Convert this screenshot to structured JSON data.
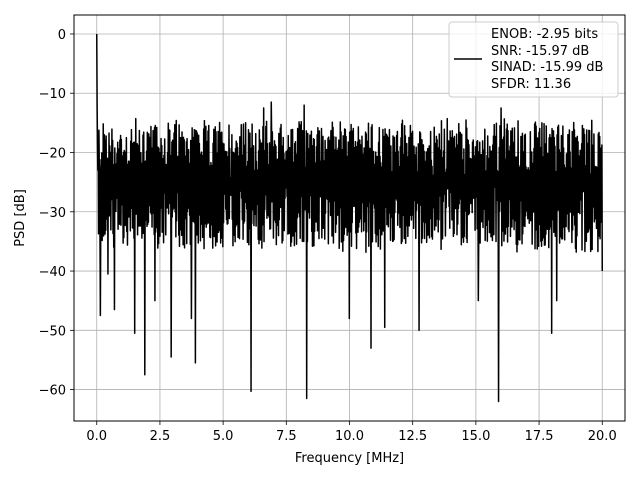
{
  "chart_data": {
    "type": "line",
    "title": "",
    "xlabel": "Frequency [MHz]",
    "ylabel": "PSD [dB]",
    "xlim": [
      -0.9,
      20.9
    ],
    "ylim": [
      -65.3,
      3.2
    ],
    "x_ticks": [
      0,
      2.5,
      5,
      7.5,
      10,
      12.5,
      15,
      17.5,
      20
    ],
    "x_tick_labels": [
      "0.0",
      "2.5",
      "5.0",
      "7.5",
      "10.0",
      "12.5",
      "15.0",
      "17.5",
      "20.0"
    ],
    "y_ticks": [
      0,
      -10,
      -20,
      -30,
      -40,
      -50,
      -60
    ],
    "y_tick_labels": [
      "0",
      "−10",
      "−20",
      "−30",
      "−40",
      "−50",
      "−60"
    ],
    "grid": true,
    "legend_position": "top-right",
    "series": [
      {
        "name": "ENOB: -2.95 bits\nSNR: -15.97 dB\nSINAD: -15.99 dB\nSFDR: 11.36",
        "color": "#000000",
        "x_range": [
          0,
          20
        ],
        "noise_floor_mean_db": -25,
        "noise_upper_envelope_db": -15,
        "noise_lower_envelope_db": -37,
        "points": [
          [
            0.0,
            0.0
          ],
          [
            0.02,
            -12
          ],
          [
            0.05,
            -23
          ],
          [
            0.1,
            -22
          ],
          [
            0.15,
            -47.5
          ],
          [
            0.3,
            -17
          ],
          [
            0.45,
            -40.5
          ],
          [
            0.7,
            -46.5
          ],
          [
            1.5,
            -50.5
          ],
          [
            1.9,
            -57.5
          ],
          [
            2.3,
            -45
          ],
          [
            2.95,
            -54.5
          ],
          [
            3.75,
            -48
          ],
          [
            3.9,
            -55.5
          ],
          [
            6.1,
            -60.3
          ],
          [
            6.6,
            -12.5
          ],
          [
            6.9,
            -11.5
          ],
          [
            8.3,
            -61.5
          ],
          [
            8.2,
            -12
          ],
          [
            10.0,
            -48
          ],
          [
            10.85,
            -53
          ],
          [
            11.4,
            -49.5
          ],
          [
            12.75,
            -50
          ],
          [
            15.1,
            -45
          ],
          [
            15.9,
            -62
          ],
          [
            16.0,
            -12.5
          ],
          [
            18.0,
            -50.5
          ],
          [
            18.2,
            -45
          ],
          [
            20.0,
            -40
          ]
        ]
      }
    ],
    "legend_lines": [
      "ENOB: -2.95 bits",
      "SNR: -15.97 dB",
      "SINAD: -15.99 dB",
      "SFDR: 11.36"
    ]
  }
}
